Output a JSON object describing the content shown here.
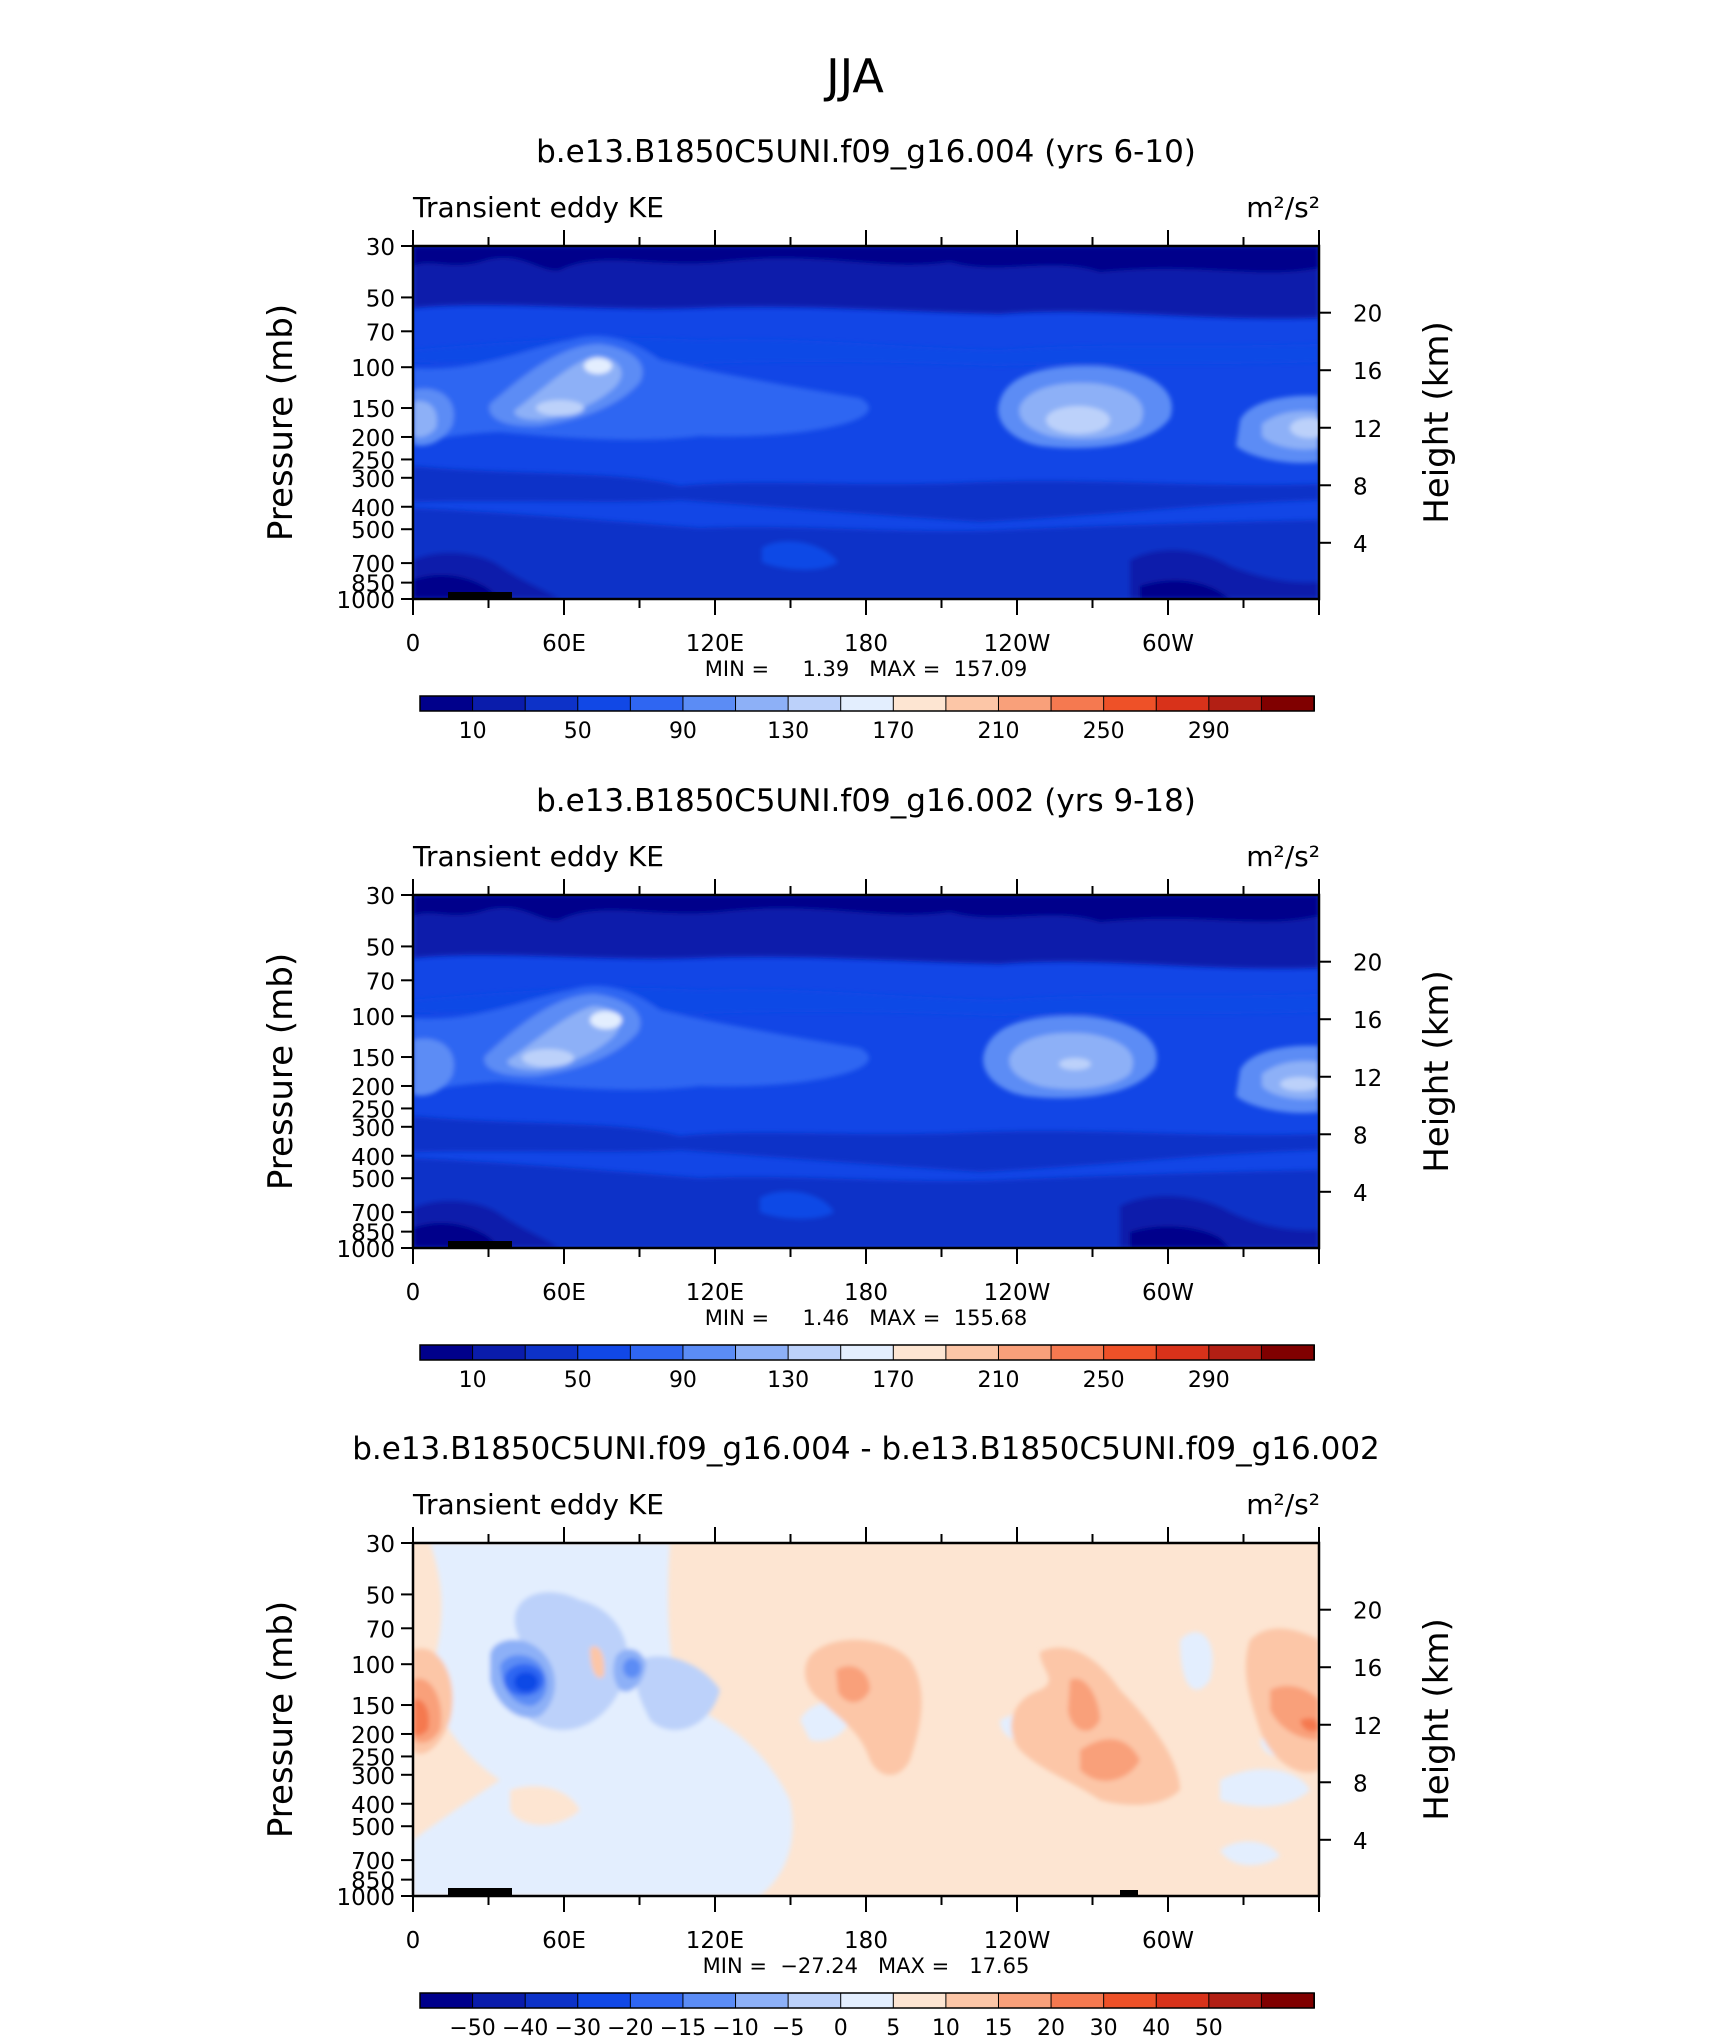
{
  "figure_title": "JJA",
  "chart_data": [
    {
      "type": "heatmap",
      "title": "b.e13.B1850C5UNI.f09_g16.004 (yrs 6-10)",
      "left_label": "Transient eddy KE",
      "units": "m²/s²",
      "ylabel": "Pressure (mb)",
      "ylabel_right": "Height (km)",
      "x_ticks": [
        "0",
        "60E",
        "120E",
        "180",
        "120W",
        "60W"
      ],
      "x_tick_lon": [
        0,
        60,
        120,
        180,
        240,
        300
      ],
      "xlim": [
        0,
        360
      ],
      "y_ticks": [
        30,
        50,
        70,
        100,
        150,
        200,
        250,
        300,
        400,
        500,
        700,
        850,
        1000
      ],
      "y_ticks_right": [
        20,
        16,
        12,
        8,
        4
      ],
      "ylim": [
        30,
        1000
      ],
      "stats": "MIN =     1.39   MAX =  157.09",
      "min": 1.39,
      "max": 157.09,
      "colorbar": {
        "labels": [
          "10",
          "50",
          "90",
          "130",
          "170",
          "210",
          "250",
          "290"
        ],
        "colors": [
          "#00008b",
          "#0a1cab",
          "#0d32c8",
          "#1148e6",
          "#2f66f2",
          "#5b8cf5",
          "#8db0f7",
          "#bcd1fa",
          "#e3eefe",
          "#fde5d2",
          "#fcc6a7",
          "#f9a07a",
          "#f57950",
          "#ee5128",
          "#d8321a",
          "#b21f14",
          "#800000"
        ]
      }
    },
    {
      "type": "heatmap",
      "title": "b.e13.B1850C5UNI.f09_g16.002 (yrs 9-18)",
      "left_label": "Transient eddy KE",
      "units": "m²/s²",
      "ylabel": "Pressure (mb)",
      "ylabel_right": "Height (km)",
      "x_ticks": [
        "0",
        "60E",
        "120E",
        "180",
        "120W",
        "60W"
      ],
      "x_tick_lon": [
        0,
        60,
        120,
        180,
        240,
        300
      ],
      "xlim": [
        0,
        360
      ],
      "y_ticks": [
        30,
        50,
        70,
        100,
        150,
        200,
        250,
        300,
        400,
        500,
        700,
        850,
        1000
      ],
      "y_ticks_right": [
        20,
        16,
        12,
        8,
        4
      ],
      "ylim": [
        30,
        1000
      ],
      "stats": "MIN =     1.46   MAX =  155.68",
      "min": 1.46,
      "max": 155.68,
      "colorbar": {
        "labels": [
          "10",
          "50",
          "90",
          "130",
          "170",
          "210",
          "250",
          "290"
        ],
        "colors": [
          "#00008b",
          "#0a1cab",
          "#0d32c8",
          "#1148e6",
          "#2f66f2",
          "#5b8cf5",
          "#8db0f7",
          "#bcd1fa",
          "#e3eefe",
          "#fde5d2",
          "#fcc6a7",
          "#f9a07a",
          "#f57950",
          "#ee5128",
          "#d8321a",
          "#b21f14",
          "#800000"
        ]
      }
    },
    {
      "type": "heatmap",
      "title": "b.e13.B1850C5UNI.f09_g16.004 - b.e13.B1850C5UNI.f09_g16.002",
      "left_label": "Transient eddy KE",
      "units": "m²/s²",
      "ylabel": "Pressure (mb)",
      "ylabel_right": "Height (km)",
      "x_ticks": [
        "0",
        "60E",
        "120E",
        "180",
        "120W",
        "60W"
      ],
      "x_tick_lon": [
        0,
        60,
        120,
        180,
        240,
        300
      ],
      "xlim": [
        0,
        360
      ],
      "y_ticks": [
        30,
        50,
        70,
        100,
        150,
        200,
        250,
        300,
        400,
        500,
        700,
        850,
        1000
      ],
      "y_ticks_right": [
        20,
        16,
        12,
        8,
        4
      ],
      "ylim": [
        30,
        1000
      ],
      "stats": "MIN =  −27.24   MAX =   17.65",
      "min": -27.24,
      "max": 17.65,
      "colorbar": {
        "labels": [
          "−50",
          "−40",
          "−30",
          "−20",
          "−15",
          "−10",
          "−5",
          "0",
          "5",
          "10",
          "15",
          "20",
          "30",
          "40",
          "50"
        ],
        "colors": [
          "#00008b",
          "#0a1cab",
          "#0d32c8",
          "#1148e6",
          "#2f66f2",
          "#5b8cf5",
          "#8db0f7",
          "#bcd1fa",
          "#e3eefe",
          "#fde5d2",
          "#fcc6a7",
          "#f9a07a",
          "#f57950",
          "#ee5128",
          "#d8321a",
          "#b21f14",
          "#800000"
        ]
      }
    }
  ]
}
